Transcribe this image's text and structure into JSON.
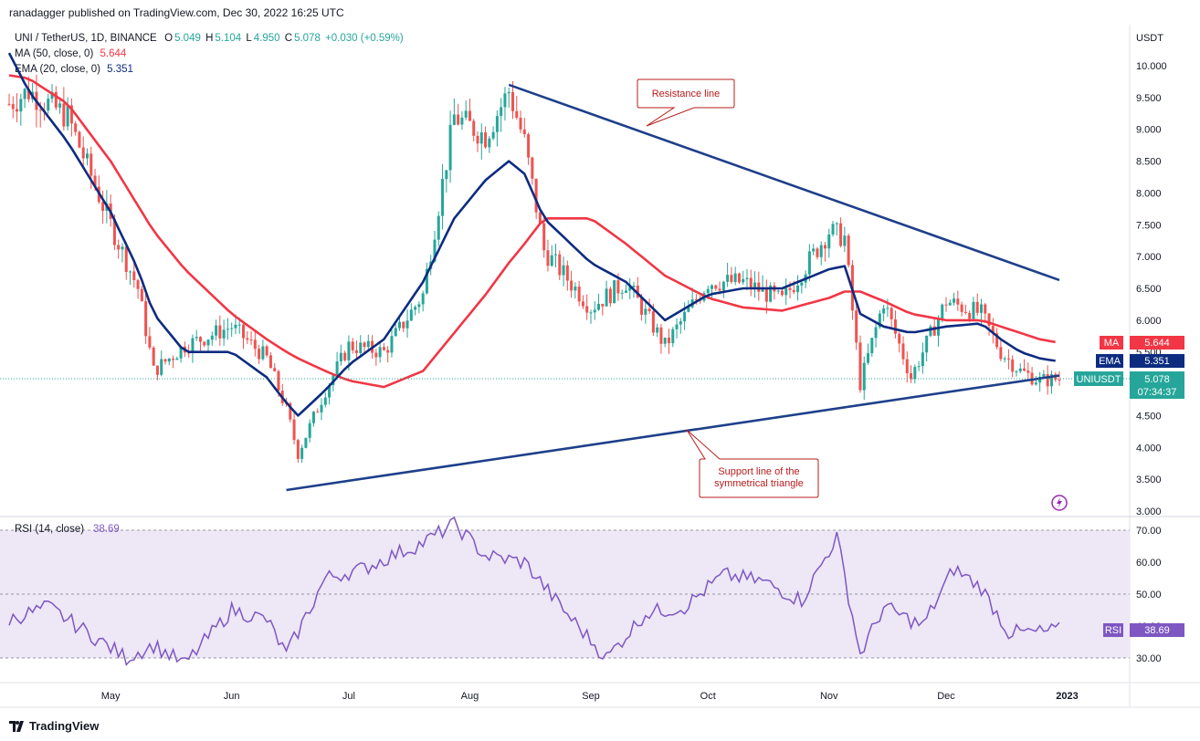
{
  "header": {
    "published_text": "ranadagger published on TradingView.com, Dec 30, 2022 16:25 UTC"
  },
  "legend": {
    "symbol": "UNI / TetherUS, 1D, BINANCE",
    "o_label": "O",
    "o": "5.049",
    "h_label": "H",
    "h": "5.104",
    "l_label": "L",
    "l": "4.950",
    "c_label": "C",
    "c": "5.078",
    "change": "+0.030 (+0.59%)",
    "ma_label": "MA (50, close, 0)",
    "ma_value": "5.644",
    "ema_label": "EMA (20, close, 0)",
    "ema_value": "5.351",
    "rsi_label": "RSI (14, close)",
    "rsi_value": "38.69"
  },
  "price_axis": {
    "currency": "USDT",
    "ticks": [
      "10.000",
      "9.500",
      "9.000",
      "8.500",
      "8.000",
      "7.500",
      "7.000",
      "6.500",
      "6.000",
      "5.500",
      "5.000",
      "4.500",
      "4.000",
      "3.500",
      "3.000"
    ]
  },
  "rsi_axis": {
    "ticks": [
      "70.00",
      "60.00",
      "50.00",
      "40.00",
      "30.00"
    ]
  },
  "time_axis": {
    "ticks": [
      "May",
      "Jun",
      "Jul",
      "Aug",
      "Sep",
      "Oct",
      "Nov",
      "Dec",
      "2023"
    ]
  },
  "tags": {
    "ma": {
      "label": "MA",
      "value": "5.644",
      "color": "#f23645"
    },
    "ema": {
      "label": "EMA",
      "value": "5.351",
      "color": "#0d2c80"
    },
    "price": {
      "label": "UNIUSDT",
      "value": "5.078",
      "countdown": "07:34:37",
      "color": "#26a69a"
    },
    "rsi": {
      "label": "RSI",
      "value": "38.69",
      "color": "#7e57c2"
    }
  },
  "annotations": {
    "resistance": "Resistance line",
    "support_line1": "Support line of the",
    "support_line2": "symmetrical triangle"
  },
  "brand": {
    "name": "TradingView"
  },
  "chart_data": {
    "type": "line",
    "colors": {
      "ma": "#f23645",
      "ema": "#0d2c80",
      "trendline": "#1e3f8a",
      "up": "#26a69a",
      "down": "#ef5350",
      "rsi": "#7e57c2",
      "rsi_band": "#ede7f6"
    },
    "ylim": [
      3.0,
      10.4
    ],
    "x": [
      "2022-04-05",
      "2022-04-10",
      "2022-04-20",
      "2022-05-01",
      "2022-05-08",
      "2022-05-12",
      "2022-05-20",
      "2022-06-01",
      "2022-06-10",
      "2022-06-15",
      "2022-06-18",
      "2022-06-25",
      "2022-07-01",
      "2022-07-10",
      "2022-07-20",
      "2022-07-28",
      "2022-08-05",
      "2022-08-11",
      "2022-08-15",
      "2022-08-20",
      "2022-09-01",
      "2022-09-10",
      "2022-09-20",
      "2022-10-01",
      "2022-10-10",
      "2022-10-20",
      "2022-11-01",
      "2022-11-05",
      "2022-11-09",
      "2022-11-15",
      "2022-11-22",
      "2022-12-01",
      "2022-12-10",
      "2022-12-15",
      "2022-12-20",
      "2022-12-25",
      "2022-12-30"
    ],
    "series": [
      {
        "name": "UNIUSDT",
        "values": [
          9.4,
          9.6,
          9.2,
          7.5,
          6.5,
          5.2,
          5.6,
          5.9,
          5.4,
          4.6,
          3.9,
          4.9,
          5.6,
          5.5,
          6.4,
          9.2,
          8.9,
          9.6,
          8.8,
          7.1,
          6.2,
          6.6,
          5.6,
          6.6,
          6.6,
          6.3,
          7.4,
          7.3,
          5.0,
          6.3,
          5.1,
          6.3,
          6.1,
          5.5,
          5.2,
          5.05,
          5.08
        ]
      },
      {
        "name": "MA (50, close, 0)",
        "values": [
          9.85,
          9.8,
          9.4,
          8.5,
          7.8,
          7.4,
          6.8,
          6.1,
          5.7,
          5.5,
          5.4,
          5.2,
          5.05,
          4.95,
          5.2,
          5.8,
          6.4,
          6.9,
          7.2,
          7.6,
          7.6,
          7.2,
          6.7,
          6.35,
          6.2,
          6.15,
          6.35,
          6.45,
          6.45,
          6.3,
          6.1,
          6.0,
          6.0,
          5.9,
          5.8,
          5.7,
          5.644
        ]
      },
      {
        "name": "EMA (20, close, 0)",
        "values": [
          10.2,
          9.6,
          8.8,
          7.7,
          6.8,
          6.1,
          5.5,
          5.5,
          5.1,
          4.7,
          4.5,
          4.9,
          5.3,
          5.7,
          6.6,
          7.6,
          8.2,
          8.5,
          8.3,
          7.6,
          6.9,
          6.6,
          6.0,
          6.4,
          6.5,
          6.5,
          6.8,
          6.85,
          6.1,
          5.9,
          5.8,
          5.9,
          5.95,
          5.7,
          5.5,
          5.4,
          5.351
        ]
      }
    ],
    "trendlines": [
      {
        "name": "Resistance line",
        "from": [
          "2022-08-11",
          9.7
        ],
        "to": [
          "2022-12-30",
          6.63
        ]
      },
      {
        "name": "Support line of the symmetrical triangle",
        "from": [
          "2022-06-15",
          3.33
        ],
        "to": [
          "2022-12-30",
          5.13
        ]
      }
    ],
    "rsi": {
      "ylim": [
        25,
        75
      ],
      "band": [
        30,
        70
      ],
      "x": [
        "2022-04-05",
        "2022-04-15",
        "2022-04-25",
        "2022-05-05",
        "2022-05-12",
        "2022-05-20",
        "2022-06-01",
        "2022-06-10",
        "2022-06-15",
        "2022-06-25",
        "2022-07-05",
        "2022-07-12",
        "2022-07-20",
        "2022-07-28",
        "2022-08-05",
        "2022-08-15",
        "2022-08-25",
        "2022-09-05",
        "2022-09-15",
        "2022-09-25",
        "2022-10-05",
        "2022-10-15",
        "2022-10-25",
        "2022-11-03",
        "2022-11-09",
        "2022-11-15",
        "2022-11-25",
        "2022-12-03",
        "2022-12-10",
        "2022-12-17",
        "2022-12-25",
        "2022-12-30"
      ],
      "values": [
        42,
        46,
        38,
        30,
        34,
        28,
        45,
        42,
        31,
        55,
        58,
        62,
        66,
        72,
        62,
        60,
        45,
        30,
        44,
        46,
        56,
        54,
        48,
        68,
        31,
        46,
        40,
        58,
        52,
        38,
        38,
        38.69
      ]
    }
  }
}
